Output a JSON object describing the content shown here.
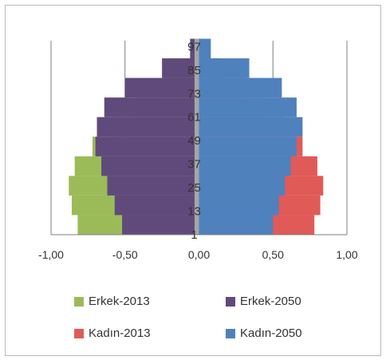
{
  "chart_data": {
    "type": "bar",
    "orientation": "horizontal",
    "title": "",
    "xlim": [
      -1.0,
      1.0
    ],
    "x_ticks": [
      "-1,00",
      "-0,50",
      "0,00",
      "0,50",
      "1,00"
    ],
    "x_tick_values": [
      -1.0,
      -0.5,
      0.0,
      0.5,
      1.0
    ],
    "y_range": [
      1,
      100
    ],
    "y_ticks": [
      "1",
      "13",
      "25",
      "37",
      "49",
      "61",
      "73",
      "85",
      "97"
    ],
    "y_tick_values": [
      1,
      13,
      25,
      37,
      49,
      61,
      73,
      85,
      97
    ],
    "grid": "vertical",
    "legend_position": "bottom",
    "series": [
      {
        "name": "Erkek-2013",
        "color": "#9bbb59",
        "values_by_age_group": [
          {
            "age_min": 1,
            "age_max": 10,
            "value": -0.82
          },
          {
            "age_min": 11,
            "age_max": 20,
            "value": -0.86
          },
          {
            "age_min": 21,
            "age_max": 30,
            "value": -0.88
          },
          {
            "age_min": 31,
            "age_max": 40,
            "value": -0.84
          },
          {
            "age_min": 41,
            "age_max": 50,
            "value": -0.72
          },
          {
            "age_min": 51,
            "age_max": 60,
            "value": -0.58
          },
          {
            "age_min": 61,
            "age_max": 70,
            "value": -0.42
          },
          {
            "age_min": 71,
            "age_max": 80,
            "value": -0.24
          },
          {
            "age_min": 81,
            "age_max": 90,
            "value": -0.1
          },
          {
            "age_min": 91,
            "age_max": 100,
            "value": -0.02
          }
        ]
      },
      {
        "name": "Erkek-2050",
        "color": "#604a7b",
        "values_by_age_group": [
          {
            "age_min": 1,
            "age_max": 10,
            "value": -0.52
          },
          {
            "age_min": 11,
            "age_max": 20,
            "value": -0.57
          },
          {
            "age_min": 21,
            "age_max": 30,
            "value": -0.62
          },
          {
            "age_min": 31,
            "age_max": 40,
            "value": -0.66
          },
          {
            "age_min": 41,
            "age_max": 50,
            "value": -0.7
          },
          {
            "age_min": 51,
            "age_max": 60,
            "value": -0.69
          },
          {
            "age_min": 61,
            "age_max": 70,
            "value": -0.64
          },
          {
            "age_min": 71,
            "age_max": 80,
            "value": -0.5
          },
          {
            "age_min": 81,
            "age_max": 90,
            "value": -0.25
          },
          {
            "age_min": 91,
            "age_max": 100,
            "value": -0.06
          }
        ]
      },
      {
        "name": "Kadın-2013",
        "color": "#e05a58",
        "values_by_age_group": [
          {
            "age_min": 1,
            "age_max": 10,
            "value": 0.78
          },
          {
            "age_min": 11,
            "age_max": 20,
            "value": 0.82
          },
          {
            "age_min": 21,
            "age_max": 30,
            "value": 0.84
          },
          {
            "age_min": 31,
            "age_max": 40,
            "value": 0.8
          },
          {
            "age_min": 41,
            "age_max": 50,
            "value": 0.7
          },
          {
            "age_min": 51,
            "age_max": 60,
            "value": 0.58
          },
          {
            "age_min": 61,
            "age_max": 70,
            "value": 0.45
          },
          {
            "age_min": 71,
            "age_max": 80,
            "value": 0.3
          },
          {
            "age_min": 81,
            "age_max": 90,
            "value": 0.15
          },
          {
            "age_min": 91,
            "age_max": 100,
            "value": 0.03
          }
        ]
      },
      {
        "name": "Kadın-2050",
        "color": "#4f81bd",
        "values_by_age_group": [
          {
            "age_min": 1,
            "age_max": 10,
            "value": 0.5
          },
          {
            "age_min": 11,
            "age_max": 20,
            "value": 0.54
          },
          {
            "age_min": 21,
            "age_max": 30,
            "value": 0.58
          },
          {
            "age_min": 31,
            "age_max": 40,
            "value": 0.62
          },
          {
            "age_min": 41,
            "age_max": 50,
            "value": 0.66
          },
          {
            "age_min": 51,
            "age_max": 60,
            "value": 0.7
          },
          {
            "age_min": 61,
            "age_max": 70,
            "value": 0.66
          },
          {
            "age_min": 71,
            "age_max": 80,
            "value": 0.56
          },
          {
            "age_min": 81,
            "age_max": 90,
            "value": 0.34
          },
          {
            "age_min": 91,
            "age_max": 100,
            "value": 0.08
          }
        ]
      },
      {
        "name": "",
        "color": "#a6a6a6",
        "values_by_age_group": [
          {
            "age_min": 1,
            "age_max": 100,
            "value": -0.03
          }
        ]
      }
    ]
  },
  "legend": {
    "items": [
      {
        "label": "Erkek-2013",
        "color": "#9bbb59"
      },
      {
        "label": "Erkek-2050",
        "color": "#604a7b"
      },
      {
        "label": "Kadın-2013",
        "color": "#e05a58"
      },
      {
        "label": "Kadın-2050",
        "color": "#4f81bd"
      }
    ]
  }
}
